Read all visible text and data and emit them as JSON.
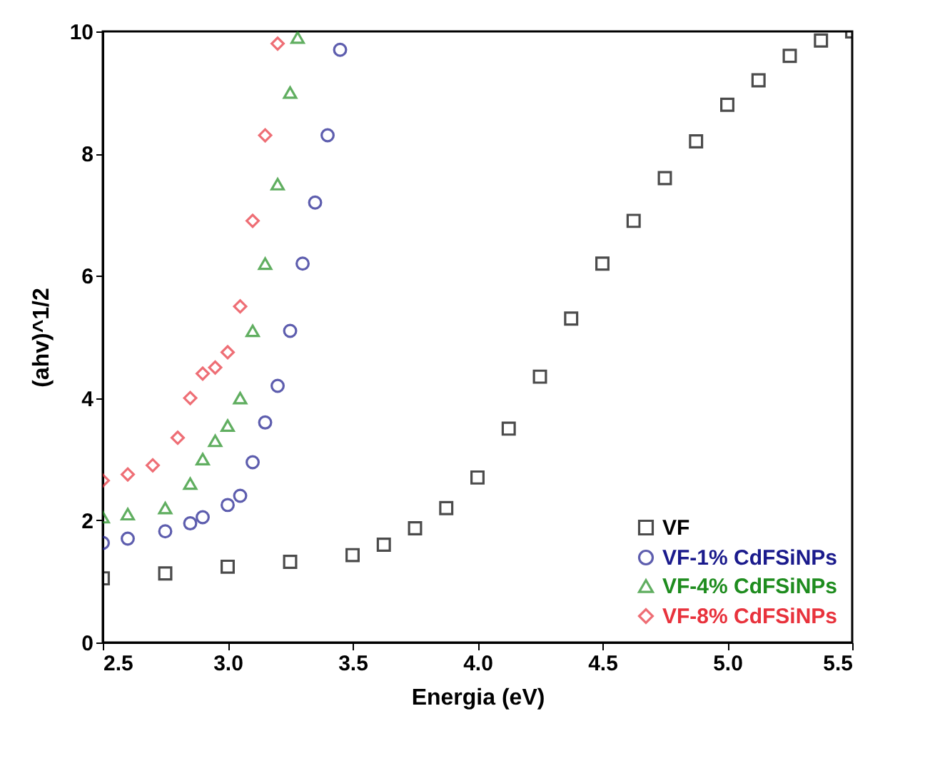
{
  "chart_data": {
    "type": "scatter",
    "xlabel": "Energia (eV)",
    "ylabel": "(ahv)^1/2",
    "xlim": [
      2.5,
      5.5
    ],
    "ylim": [
      0,
      10
    ],
    "xticks": [
      {
        "value": 2.5,
        "label": "2.5"
      },
      {
        "value": 3,
        "label": "3.0"
      },
      {
        "value": 3.5,
        "label": "3.5"
      },
      {
        "value": 4,
        "label": "4.0"
      },
      {
        "value": 4.5,
        "label": "4.5"
      },
      {
        "value": 5,
        "label": "5.0"
      },
      {
        "value": 5.5,
        "label": "5.5"
      }
    ],
    "yticks": [
      0,
      2,
      4,
      6,
      8,
      10
    ],
    "grid": false,
    "legend": "bottom right",
    "series": [
      {
        "name": "VF",
        "color": "#000000",
        "marker": "square",
        "x": [
          2.5,
          2.75,
          3.0,
          3.25,
          3.5,
          3.625,
          3.75,
          3.875,
          4.0,
          4.125,
          4.25,
          4.375,
          4.5,
          4.625,
          4.75,
          4.875,
          5.0,
          5.125,
          5.25,
          5.375,
          5.5
        ],
        "values": [
          1.05,
          1.13,
          1.24,
          1.32,
          1.43,
          1.6,
          1.87,
          2.2,
          2.7,
          3.5,
          4.35,
          5.3,
          6.2,
          6.9,
          7.6,
          8.2,
          8.8,
          9.2,
          9.6,
          9.85,
          10
        ]
      },
      {
        "name": "VF-1% CdFSiNPs",
        "color": "#1a1a8c",
        "marker": "circle",
        "x": [
          2.5,
          2.6,
          2.75,
          2.85,
          2.9,
          3.0,
          3.05,
          3.1,
          3.15,
          3.2,
          3.25,
          3.3,
          3.35,
          3.4,
          3.45
        ],
        "values": [
          1.63,
          1.7,
          1.82,
          1.95,
          2.05,
          2.25,
          2.4,
          2.95,
          3.6,
          4.2,
          5.1,
          6.2,
          7.2,
          8.3,
          9.7
        ]
      },
      {
        "name": "VF-4% CdFSiNPs",
        "color": "#1e8c1e",
        "marker": "triangle",
        "x": [
          2.5,
          2.6,
          2.75,
          2.85,
          2.9,
          2.95,
          3.0,
          3.05,
          3.1,
          3.15,
          3.2,
          3.25,
          3.28
        ],
        "values": [
          2.05,
          2.1,
          2.2,
          2.6,
          3.0,
          3.3,
          3.55,
          4.0,
          5.1,
          6.2,
          7.5,
          9.0,
          9.9
        ]
      },
      {
        "name": "VF-8% CdFSiNPs",
        "color": "#e8323c",
        "marker": "diamond",
        "x": [
          2.5,
          2.6,
          2.7,
          2.8,
          2.85,
          2.9,
          2.95,
          3.0,
          3.05,
          3.1,
          3.15,
          3.2
        ],
        "values": [
          2.65,
          2.75,
          2.9,
          3.35,
          4.0,
          4.4,
          4.5,
          4.75,
          5.5,
          6.9,
          8.3,
          9.8
        ]
      }
    ]
  }
}
